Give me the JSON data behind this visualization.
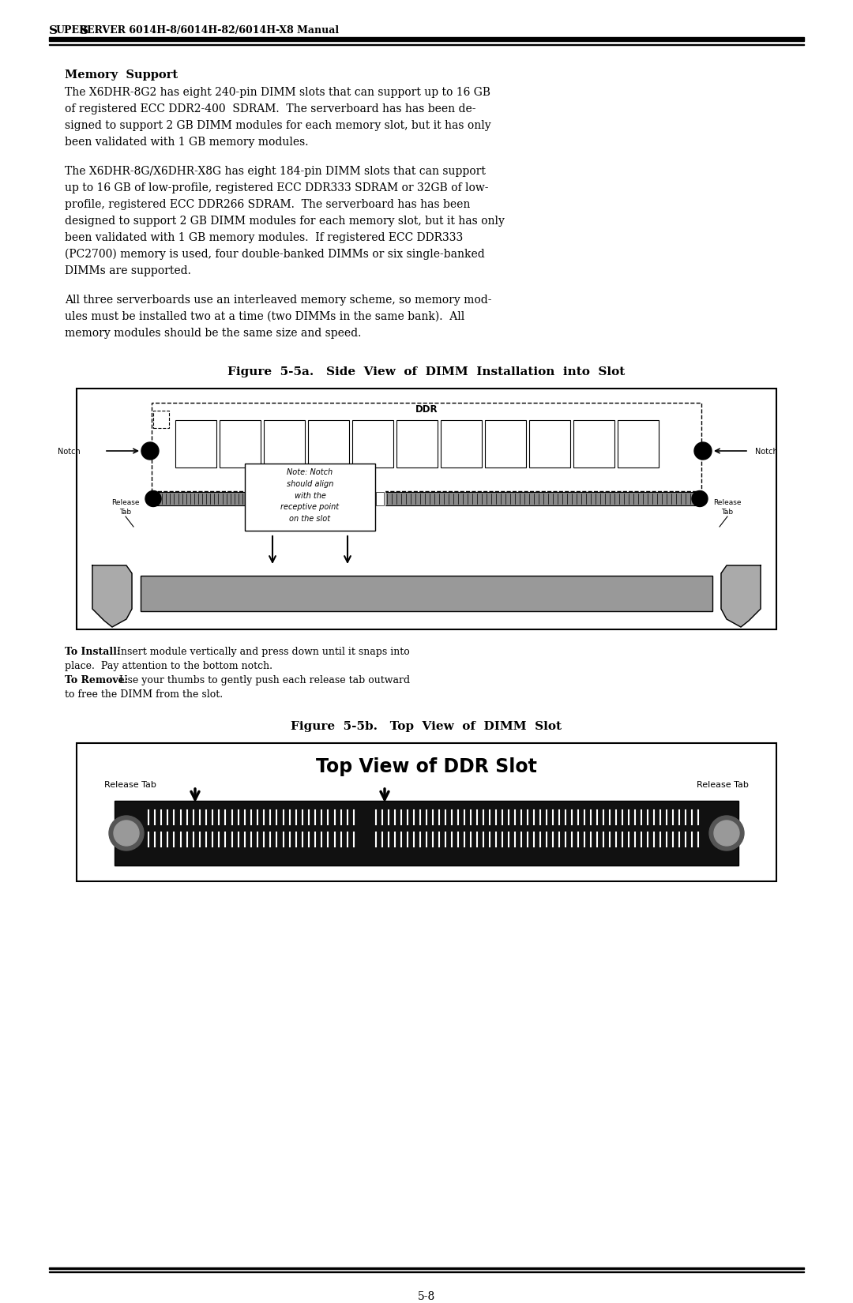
{
  "page_title_s": "S",
  "page_title_uper": "UPER",
  "page_title_s2": "S",
  "page_title_erver": "ERVER 6014H-8/6014H-82/6014H-X8 Manual",
  "header_bold": "Memory  Support",
  "para1_lines": [
    "The X6DHR-8G2 has eight 240-pin DIMM slots that can support up to 16 GB",
    "of registered ECC DDR2-400  SDRAM.  The serverboard has has been de-",
    "signed to support 2 GB DIMM modules for each memory slot, but it has only",
    "been validated with 1 GB memory modules."
  ],
  "para2_lines": [
    "The X6DHR-8G/X6DHR-X8G has eight 184-pin DIMM slots that can support",
    "up to 16 GB of low-profile, registered ECC DDR333 SDRAM or 32GB of low-",
    "profile, registered ECC DDR266 SDRAM.  The serverboard has has been",
    "designed to support 2 GB DIMM modules for each memory slot, but it has only",
    "been validated with 1 GB memory modules.  If registered ECC DDR333",
    "(PC2700) memory is used, four double-banked DIMMs or six single-banked",
    "DIMMs are supported."
  ],
  "para3_lines": [
    "All three serverboards use an interleaved memory scheme, so memory mod-",
    "ules must be installed two at a time (two DIMMs in the same bank).  All",
    "memory modules should be the same size and speed."
  ],
  "fig5a_title": "Figure  5-5a.   Side  View  of  DIMM  Installation  into  Slot",
  "fig5b_title": "Figure  5-5b.   Top  View  of  DIMM  Slot",
  "install_bold": "To Install:",
  "install_rest": " Insert module vertically and press down until it snaps into",
  "install_rest2": "place.  Pay attention to the bottom notch.",
  "remove_bold": "To Remove:",
  "remove_rest": " Use your thumbs to gently push each release tab outward",
  "remove_rest2": "to free the DIMM from the slot.",
  "page_number": "5-8",
  "note_text": "Note: Notch\nshould align\nwith the\nreceptive point\non the slot",
  "top_view_title": "Top View of DDR Slot",
  "bg_color": "#ffffff"
}
